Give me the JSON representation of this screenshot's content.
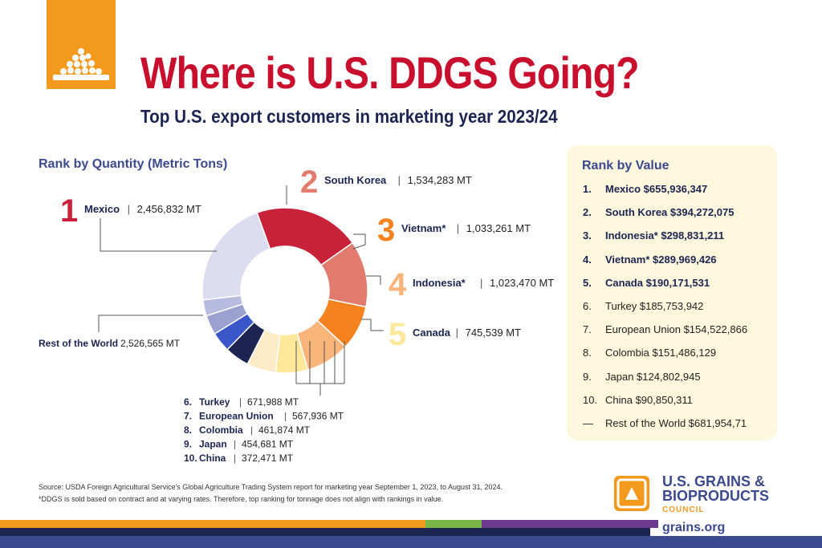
{
  "header": {
    "title": "Where is U.S. DDGS Going?",
    "subtitle": "Top U.S. export customers in marketing year 2023/24"
  },
  "quantity_section_title": "Rank by Quantity (Metric Tons)",
  "value_section_title": "Rank by Value",
  "colors": {
    "accent_orange": "#f39a1e",
    "title_red": "#c8102e",
    "navy": "#1c2452",
    "panel_bg": "#fdf7dd"
  },
  "chart_data": {
    "type": "pie",
    "title": "Rank by Quantity (Metric Tons)",
    "donut": true,
    "slices": [
      {
        "rank": "1",
        "label": "Mexico",
        "value_text": "2,456,832 MT",
        "value": 2456832,
        "color": "#c8213a"
      },
      {
        "rank": "2",
        "label": "South Korea",
        "value_text": "1,534,283 MT",
        "value": 1534283,
        "color": "#e07b6e"
      },
      {
        "rank": "3",
        "label": "Vietnam*",
        "value_text": "1,033,261 MT",
        "value": 1033261,
        "color": "#f4831f"
      },
      {
        "rank": "4",
        "label": "Indonesia*",
        "value_text": "1,023,470 MT",
        "value": 1023470,
        "color": "#f9b47a"
      },
      {
        "rank": "5",
        "label": "Canada",
        "value_text": "745,539 MT",
        "value": 745539,
        "color": "#fde89a"
      },
      {
        "rank": "6.",
        "label": "Turkey",
        "value_text": "671,988 MT",
        "value": 671988,
        "color": "#fdebc8"
      },
      {
        "rank": "7.",
        "label": "European Union",
        "value_text": "567,936 MT",
        "value": 567936,
        "color": "#1c2452"
      },
      {
        "rank": "8.",
        "label": "Colombia",
        "value_text": "461,874 MT",
        "value": 461874,
        "color": "#3a57c9"
      },
      {
        "rank": "9.",
        "label": "Japan",
        "value_text": "454,681 MT",
        "value": 454681,
        "color": "#9aa0cf"
      },
      {
        "rank": "10.",
        "label": "China",
        "value_text": "372,471 MT",
        "value": 372471,
        "color": "#b7bbe0"
      },
      {
        "rank": "",
        "label": "Rest of the World",
        "value_text": "2,526,565 MT",
        "value": 2526565,
        "color": "#dcdcf0"
      }
    ]
  },
  "rank_by_value": [
    {
      "rank": "1.",
      "text": "Mexico $655,936,347",
      "bold": true
    },
    {
      "rank": "2.",
      "text": "South Korea $394,272,075",
      "bold": true
    },
    {
      "rank": "3.",
      "text": "Indonesia* $298,831,211",
      "bold": true
    },
    {
      "rank": "4.",
      "text": "Vietnam* $289,969,426",
      "bold": true
    },
    {
      "rank": "5.",
      "text": "Canada $190,171,531",
      "bold": true
    },
    {
      "rank": "6.",
      "text": "Turkey $185,753,942",
      "bold": false
    },
    {
      "rank": "7.",
      "text": "European Union $154,522,866",
      "bold": false
    },
    {
      "rank": "8.",
      "text": "Colombia $151,486,129",
      "bold": false
    },
    {
      "rank": "9.",
      "text": "Japan $124,802,945",
      "bold": false
    },
    {
      "rank": "10.",
      "text": "China $90,850,311",
      "bold": false
    },
    {
      "rank": "—",
      "text": "Rest of the World $681,954,71",
      "bold": false
    }
  ],
  "footnotes": {
    "source": "Source: USDA Foreign Agricultural Service's Global Agriculture Trading System report for marketing year September 1, 2023, to August 31, 2024.",
    "note": "*DDGS is sold based on contract and at varying rates. Therefore, top ranking for tonnage does not align with rankings in value."
  },
  "brand": {
    "line1": "U.S. GRAINS &",
    "line2": "BIOPRODUCTS",
    "line3": "COUNCIL",
    "website": "grains.org",
    "logo_icon": "grains-council-logo-icon",
    "header_icon": "grain-pile-icon"
  }
}
